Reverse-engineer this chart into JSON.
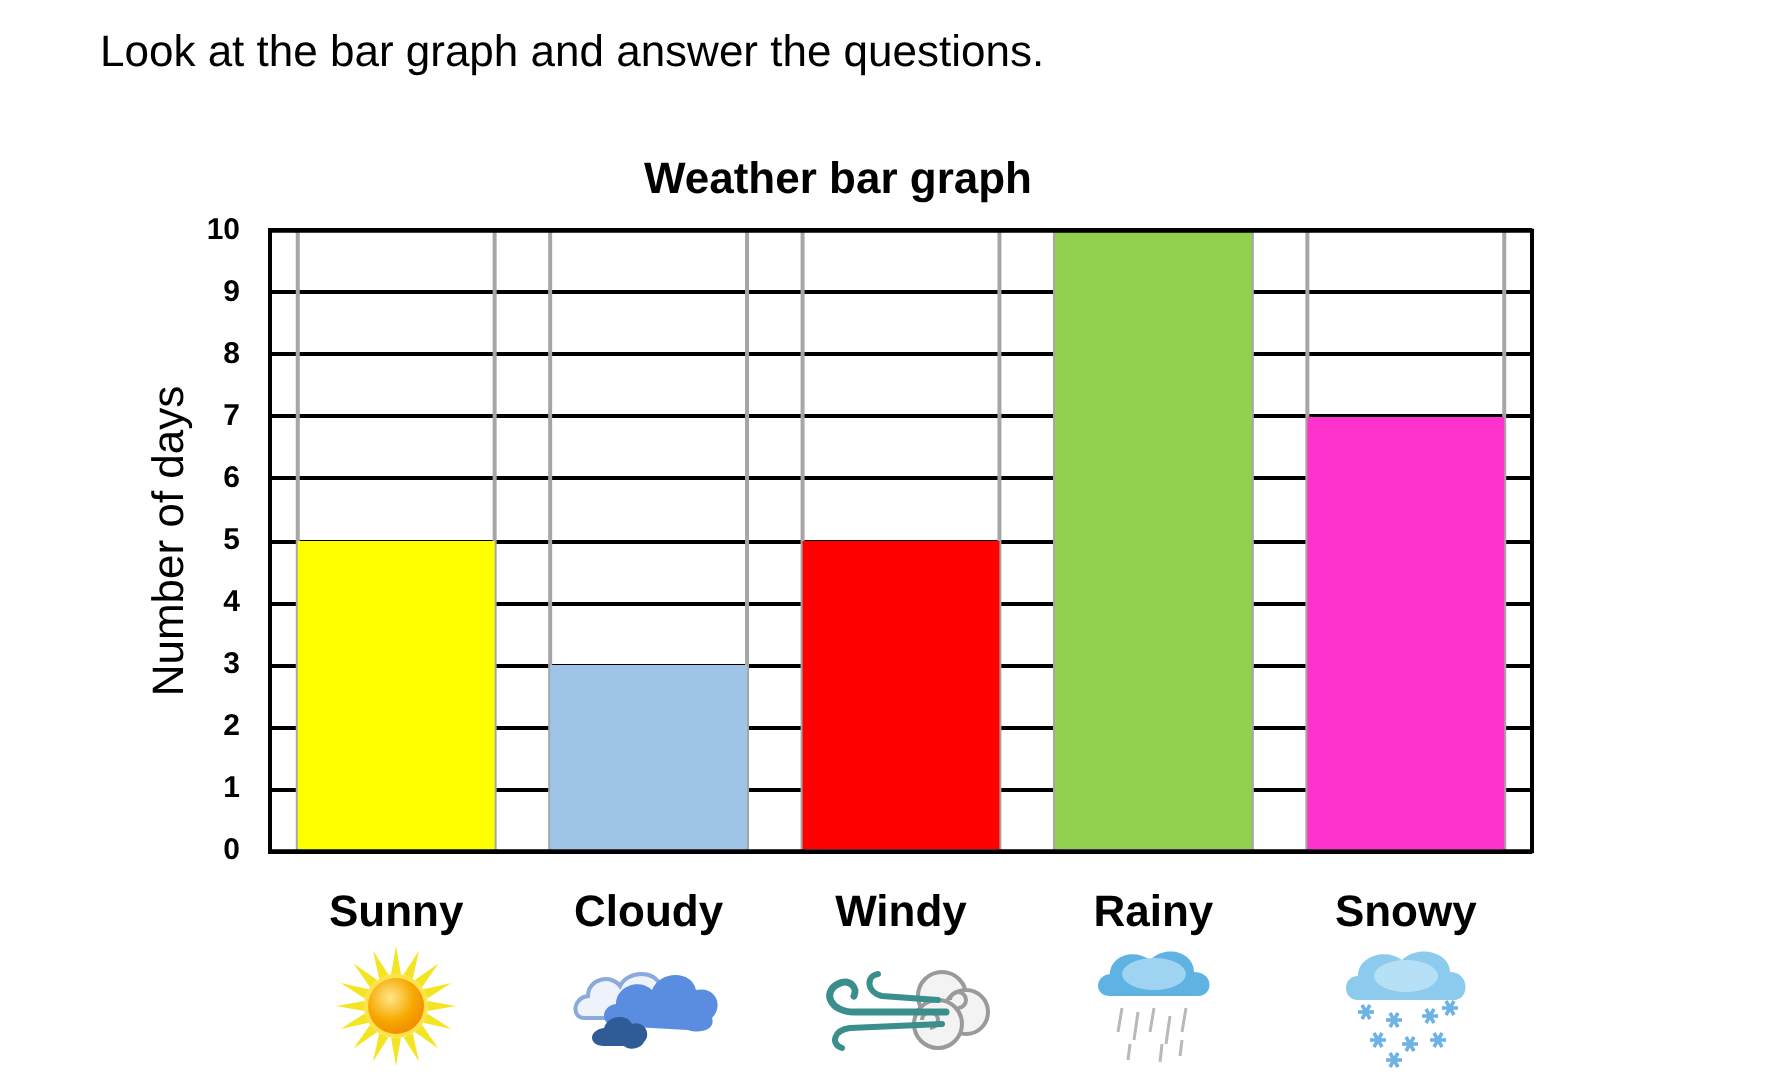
{
  "chart_data": {
    "type": "bar",
    "title": "Weather bar graph",
    "ylabel": "Number of days",
    "categories": [
      "Sunny",
      "Cloudy",
      "Windy",
      "Rainy",
      "Snowy"
    ],
    "values": [
      5,
      3,
      5,
      10,
      7
    ],
    "colors": [
      "#ffff00",
      "#9dc3e6",
      "#ff0000",
      "#92d050",
      "#ff33cc"
    ],
    "ylim": [
      0,
      10
    ],
    "yticks": [
      0,
      1,
      2,
      3,
      4,
      5,
      6,
      7,
      8,
      9,
      10
    ],
    "grid": true,
    "annotations": [
      "Look at the bar graph and answer the questions."
    ]
  }
}
